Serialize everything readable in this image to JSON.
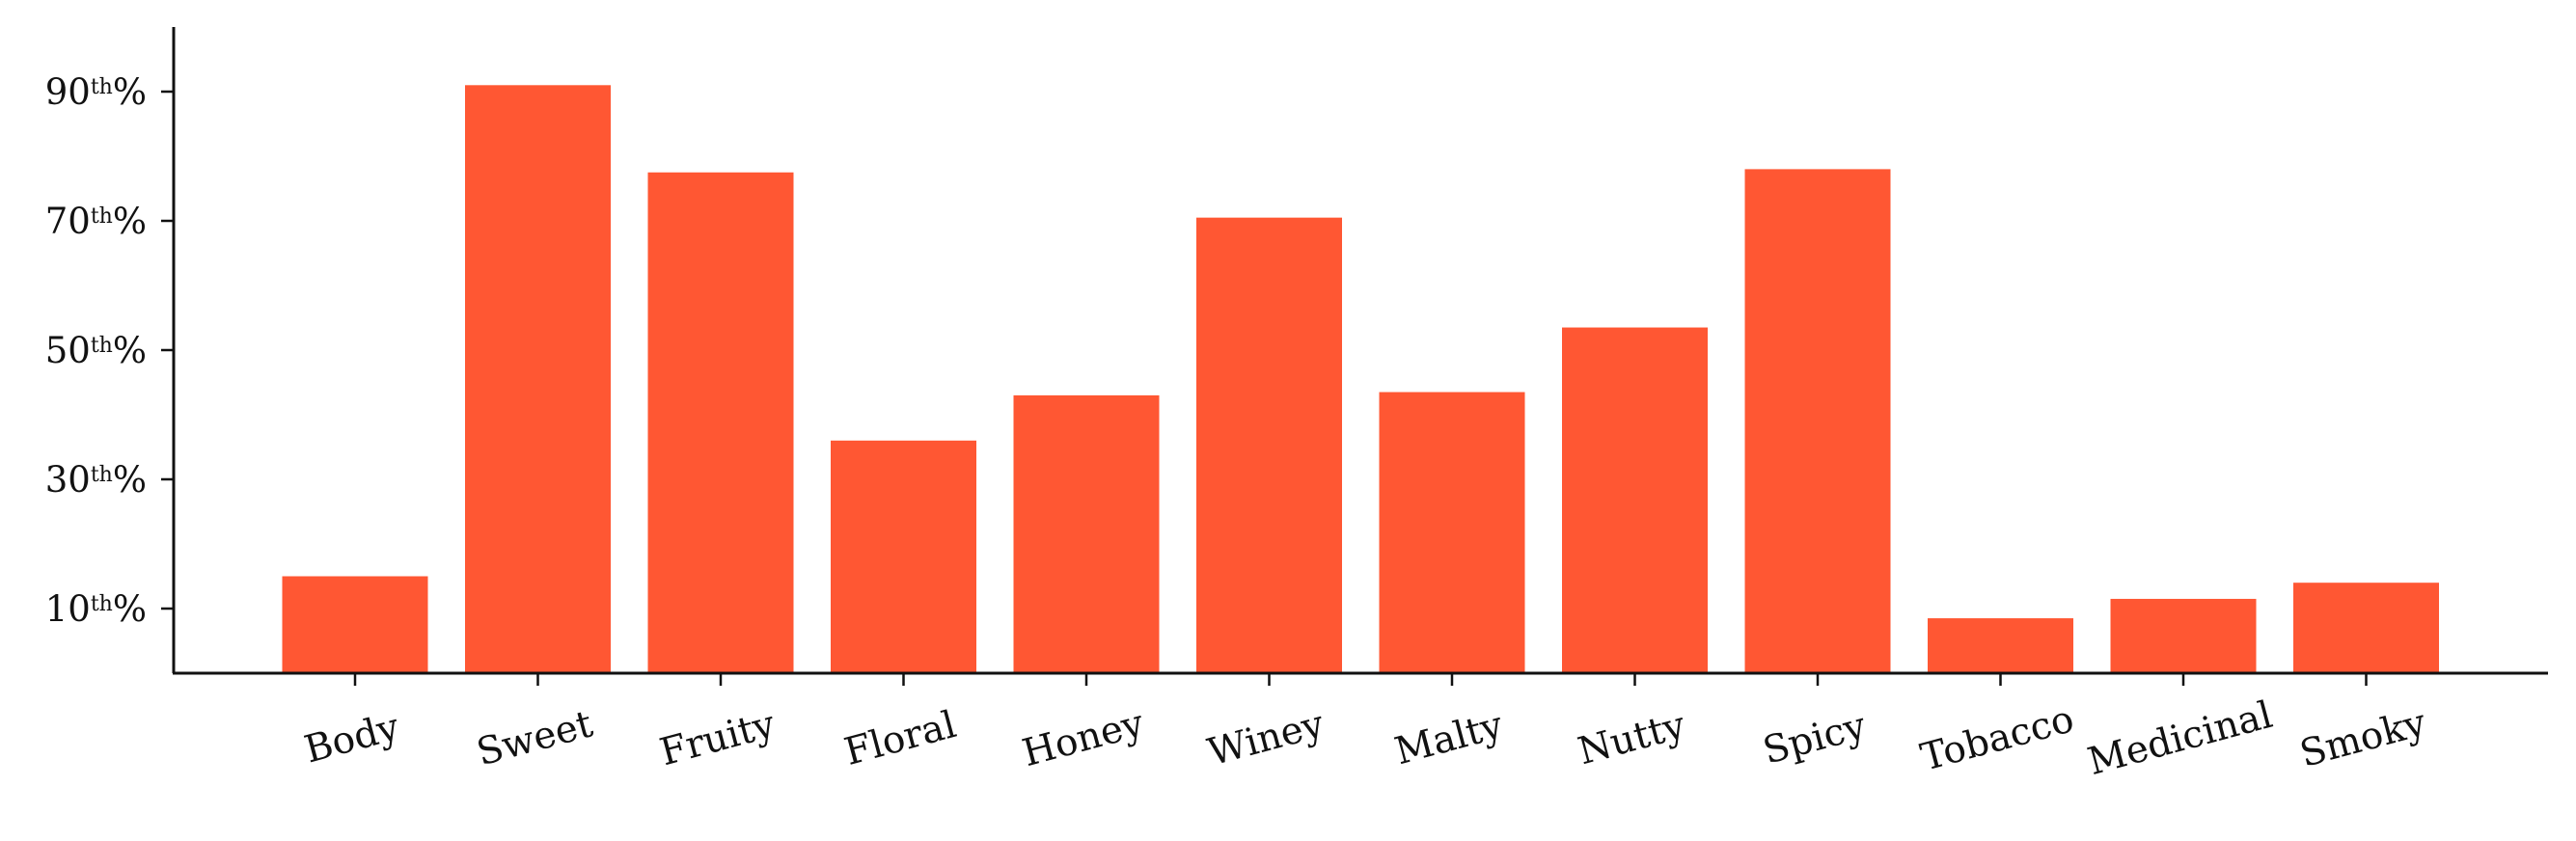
{
  "chart_data": {
    "type": "bar",
    "categories": [
      "Body",
      "Sweet",
      "Fruity",
      "Floral",
      "Honey",
      "Winey",
      "Malty",
      "Nutty",
      "Spicy",
      "Tobacco",
      "Medicinal",
      "Smoky"
    ],
    "values": [
      15,
      91,
      77.5,
      36,
      43,
      70.5,
      43.5,
      53.5,
      78,
      8.5,
      11.5,
      14
    ],
    "bar_color": "#ff5733",
    "ylim": [
      0,
      100
    ],
    "yticks": [
      {
        "value": 10,
        "number": "10",
        "suffix": "th",
        "unit": "%"
      },
      {
        "value": 30,
        "number": "30",
        "suffix": "th",
        "unit": "%"
      },
      {
        "value": 50,
        "number": "50",
        "suffix": "th",
        "unit": "%"
      },
      {
        "value": 70,
        "number": "70",
        "suffix": "th",
        "unit": "%"
      },
      {
        "value": 90,
        "number": "90",
        "suffix": "th",
        "unit": "%"
      }
    ],
    "title": "",
    "xlabel": "",
    "ylabel": "",
    "grid": false,
    "legend": "none"
  }
}
